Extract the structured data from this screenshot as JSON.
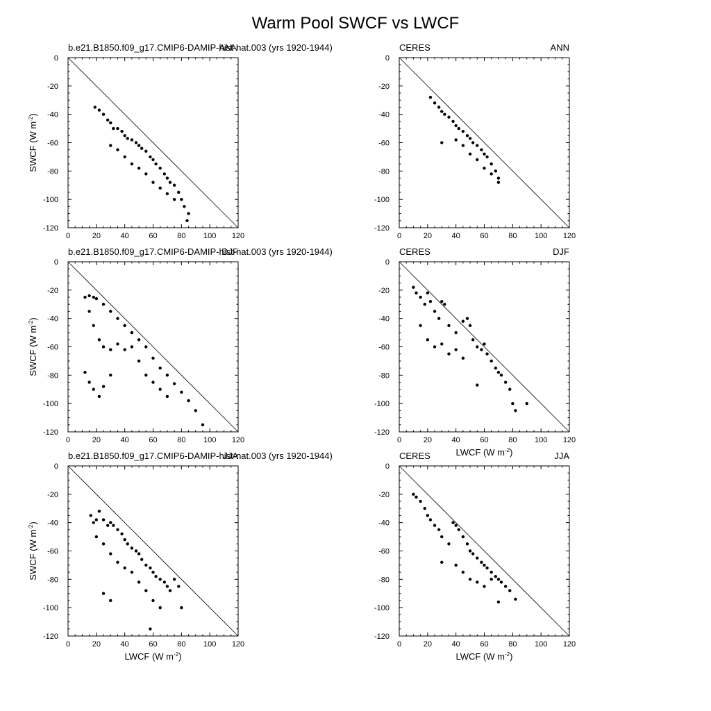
{
  "figure": {
    "title": "Warm Pool SWCF vs LWCF"
  },
  "chart_data": [
    {
      "type": "scatter",
      "left_label": "b.e21.B1850.f09_g17.CMIP6-DAMIP-hist-nat.003 (yrs 1920-1944)",
      "right_label": "ANN",
      "xlabel": "",
      "ylabel": "SWCF (W m-2)",
      "xlim": [
        0,
        120
      ],
      "ylim": [
        -120,
        0
      ],
      "xticks": [
        0,
        20,
        40,
        60,
        80,
        100,
        120
      ],
      "yticks": [
        0,
        -20,
        -40,
        -60,
        -80,
        -100,
        -120
      ],
      "reference_line": "y = -x",
      "grid": false,
      "points_approx": [
        [
          19,
          -35
        ],
        [
          22,
          -37
        ],
        [
          25,
          -40
        ],
        [
          28,
          -44
        ],
        [
          30,
          -46
        ],
        [
          32,
          -50
        ],
        [
          35,
          -50
        ],
        [
          38,
          -52
        ],
        [
          40,
          -55
        ],
        [
          42,
          -57
        ],
        [
          45,
          -58
        ],
        [
          48,
          -60
        ],
        [
          50,
          -62
        ],
        [
          52,
          -64
        ],
        [
          55,
          -66
        ],
        [
          58,
          -70
        ],
        [
          60,
          -72
        ],
        [
          62,
          -75
        ],
        [
          65,
          -78
        ],
        [
          68,
          -82
        ],
        [
          70,
          -85
        ],
        [
          72,
          -88
        ],
        [
          75,
          -90
        ],
        [
          78,
          -95
        ],
        [
          80,
          -100
        ],
        [
          82,
          -105
        ],
        [
          85,
          -110
        ],
        [
          84,
          -115
        ],
        [
          30,
          -62
        ],
        [
          35,
          -65
        ],
        [
          40,
          -70
        ],
        [
          45,
          -75
        ],
        [
          50,
          -78
        ],
        [
          55,
          -82
        ],
        [
          60,
          -88
        ],
        [
          65,
          -92
        ],
        [
          70,
          -96
        ],
        [
          75,
          -100
        ]
      ]
    },
    {
      "type": "scatter",
      "left_label": "CERES",
      "right_label": "ANN",
      "xlabel": "",
      "ylabel": "",
      "xlim": [
        0,
        120
      ],
      "ylim": [
        -120,
        0
      ],
      "xticks": [
        0,
        20,
        40,
        60,
        80,
        100,
        120
      ],
      "yticks": [
        0,
        -20,
        -40,
        -60,
        -80,
        -100,
        -120
      ],
      "reference_line": "y = -x",
      "grid": false,
      "points_approx": [
        [
          22,
          -28
        ],
        [
          25,
          -32
        ],
        [
          28,
          -35
        ],
        [
          30,
          -38
        ],
        [
          32,
          -40
        ],
        [
          35,
          -42
        ],
        [
          38,
          -45
        ],
        [
          40,
          -48
        ],
        [
          42,
          -50
        ],
        [
          45,
          -52
        ],
        [
          48,
          -55
        ],
        [
          50,
          -57
        ],
        [
          52,
          -60
        ],
        [
          55,
          -62
        ],
        [
          58,
          -65
        ],
        [
          60,
          -68
        ],
        [
          62,
          -70
        ],
        [
          65,
          -75
        ],
        [
          68,
          -80
        ],
        [
          70,
          -85
        ],
        [
          30,
          -60
        ],
        [
          40,
          -58
        ],
        [
          45,
          -62
        ],
        [
          50,
          -68
        ],
        [
          55,
          -72
        ],
        [
          60,
          -78
        ],
        [
          65,
          -82
        ],
        [
          70,
          -88
        ]
      ]
    },
    {
      "type": "scatter",
      "left_label": "b.e21.B1850.f09_g17.CMIP6-DAMIP-hist-nat.003 (yrs 1920-1944)",
      "right_label": "DJF",
      "xlabel": "",
      "ylabel": "SWCF (W m-2)",
      "xlim": [
        0,
        120
      ],
      "ylim": [
        -120,
        0
      ],
      "xticks": [
        0,
        20,
        40,
        60,
        80,
        100,
        120
      ],
      "yticks": [
        0,
        -20,
        -40,
        -60,
        -80,
        -100,
        -120
      ],
      "reference_line": "y = -x",
      "grid": false,
      "points_approx": [
        [
          12,
          -25
        ],
        [
          15,
          -24
        ],
        [
          18,
          -25
        ],
        [
          20,
          -26
        ],
        [
          25,
          -30
        ],
        [
          30,
          -35
        ],
        [
          35,
          -40
        ],
        [
          40,
          -45
        ],
        [
          45,
          -50
        ],
        [
          50,
          -55
        ],
        [
          55,
          -60
        ],
        [
          60,
          -68
        ],
        [
          65,
          -75
        ],
        [
          70,
          -80
        ],
        [
          75,
          -86
        ],
        [
          80,
          -92
        ],
        [
          85,
          -98
        ],
        [
          90,
          -105
        ],
        [
          95,
          -115
        ],
        [
          15,
          -35
        ],
        [
          18,
          -45
        ],
        [
          22,
          -55
        ],
        [
          25,
          -60
        ],
        [
          30,
          -62
        ],
        [
          35,
          -58
        ],
        [
          40,
          -62
        ],
        [
          45,
          -60
        ],
        [
          50,
          -70
        ],
        [
          55,
          -80
        ],
        [
          60,
          -85
        ],
        [
          65,
          -90
        ],
        [
          70,
          -95
        ],
        [
          12,
          -78
        ],
        [
          15,
          -85
        ],
        [
          18,
          -90
        ],
        [
          22,
          -95
        ],
        [
          25,
          -88
        ],
        [
          30,
          -80
        ]
      ]
    },
    {
      "type": "scatter",
      "left_label": "CERES",
      "right_label": "DJF",
      "xlabel": "LWCF (W m-2)",
      "ylabel": "",
      "xlim": [
        0,
        120
      ],
      "ylim": [
        -120,
        0
      ],
      "xticks": [
        0,
        20,
        40,
        60,
        80,
        100,
        120
      ],
      "yticks": [
        0,
        -20,
        -40,
        -60,
        -80,
        -100,
        -120
      ],
      "reference_line": "y = -x",
      "grid": false,
      "points_approx": [
        [
          10,
          -18
        ],
        [
          12,
          -22
        ],
        [
          15,
          -25
        ],
        [
          18,
          -30
        ],
        [
          20,
          -22
        ],
        [
          22,
          -28
        ],
        [
          25,
          -35
        ],
        [
          28,
          -40
        ],
        [
          30,
          -28
        ],
        [
          32,
          -30
        ],
        [
          35,
          -45
        ],
        [
          40,
          -50
        ],
        [
          45,
          -42
        ],
        [
          48,
          -40
        ],
        [
          50,
          -45
        ],
        [
          52,
          -55
        ],
        [
          55,
          -60
        ],
        [
          58,
          -62
        ],
        [
          60,
          -58
        ],
        [
          62,
          -65
        ],
        [
          65,
          -70
        ],
        [
          68,
          -75
        ],
        [
          70,
          -78
        ],
        [
          72,
          -80
        ],
        [
          75,
          -85
        ],
        [
          78,
          -90
        ],
        [
          80,
          -100
        ],
        [
          82,
          -105
        ],
        [
          90,
          -100
        ],
        [
          15,
          -45
        ],
        [
          20,
          -55
        ],
        [
          25,
          -60
        ],
        [
          30,
          -58
        ],
        [
          35,
          -65
        ],
        [
          40,
          -62
        ],
        [
          45,
          -68
        ],
        [
          55,
          -87
        ]
      ]
    },
    {
      "type": "scatter",
      "left_label": "b.e21.B1850.f09_g17.CMIP6-DAMIP-hist-nat.003 (yrs 1920-1944)",
      "right_label": "JJA",
      "xlabel": "LWCF (W m-2)",
      "ylabel": "SWCF (W m-2)",
      "xlim": [
        0,
        120
      ],
      "ylim": [
        -120,
        0
      ],
      "xticks": [
        0,
        20,
        40,
        60,
        80,
        100,
        120
      ],
      "yticks": [
        0,
        -20,
        -40,
        -60,
        -80,
        -100,
        -120
      ],
      "reference_line": "y = -x",
      "grid": false,
      "points_approx": [
        [
          16,
          -35
        ],
        [
          18,
          -40
        ],
        [
          20,
          -38
        ],
        [
          22,
          -32
        ],
        [
          25,
          -38
        ],
        [
          28,
          -42
        ],
        [
          30,
          -40
        ],
        [
          32,
          -42
        ],
        [
          35,
          -45
        ],
        [
          38,
          -48
        ],
        [
          40,
          -52
        ],
        [
          42,
          -55
        ],
        [
          45,
          -58
        ],
        [
          48,
          -60
        ],
        [
          50,
          -62
        ],
        [
          52,
          -66
        ],
        [
          55,
          -70
        ],
        [
          58,
          -72
        ],
        [
          60,
          -75
        ],
        [
          62,
          -78
        ],
        [
          65,
          -80
        ],
        [
          68,
          -82
        ],
        [
          70,
          -85
        ],
        [
          72,
          -88
        ],
        [
          75,
          -80
        ],
        [
          78,
          -85
        ],
        [
          80,
          -100
        ],
        [
          20,
          -50
        ],
        [
          25,
          -55
        ],
        [
          30,
          -62
        ],
        [
          35,
          -68
        ],
        [
          40,
          -72
        ],
        [
          45,
          -75
        ],
        [
          50,
          -82
        ],
        [
          55,
          -88
        ],
        [
          60,
          -95
        ],
        [
          65,
          -100
        ],
        [
          58,
          -115
        ],
        [
          25,
          -90
        ],
        [
          30,
          -95
        ]
      ]
    },
    {
      "type": "scatter",
      "left_label": "CERES",
      "right_label": "JJA",
      "xlabel": "LWCF (W m-2)",
      "ylabel": "",
      "xlim": [
        0,
        120
      ],
      "ylim": [
        -120,
        0
      ],
      "xticks": [
        0,
        20,
        40,
        60,
        80,
        100,
        120
      ],
      "yticks": [
        0,
        -20,
        -40,
        -60,
        -80,
        -100,
        -120
      ],
      "reference_line": "y = -x",
      "grid": false,
      "points_approx": [
        [
          10,
          -20
        ],
        [
          12,
          -22
        ],
        [
          15,
          -25
        ],
        [
          18,
          -30
        ],
        [
          20,
          -35
        ],
        [
          22,
          -38
        ],
        [
          25,
          -42
        ],
        [
          28,
          -45
        ],
        [
          30,
          -50
        ],
        [
          35,
          -55
        ],
        [
          38,
          -40
        ],
        [
          40,
          -42
        ],
        [
          42,
          -45
        ],
        [
          45,
          -50
        ],
        [
          48,
          -55
        ],
        [
          50,
          -60
        ],
        [
          52,
          -62
        ],
        [
          55,
          -65
        ],
        [
          58,
          -68
        ],
        [
          60,
          -70
        ],
        [
          62,
          -72
        ],
        [
          65,
          -75
        ],
        [
          68,
          -78
        ],
        [
          70,
          -80
        ],
        [
          72,
          -82
        ],
        [
          75,
          -85
        ],
        [
          78,
          -88
        ],
        [
          82,
          -94
        ],
        [
          30,
          -68
        ],
        [
          40,
          -70
        ],
        [
          45,
          -75
        ],
        [
          50,
          -80
        ],
        [
          55,
          -82
        ],
        [
          60,
          -85
        ],
        [
          65,
          -80
        ],
        [
          70,
          -96
        ]
      ]
    }
  ]
}
